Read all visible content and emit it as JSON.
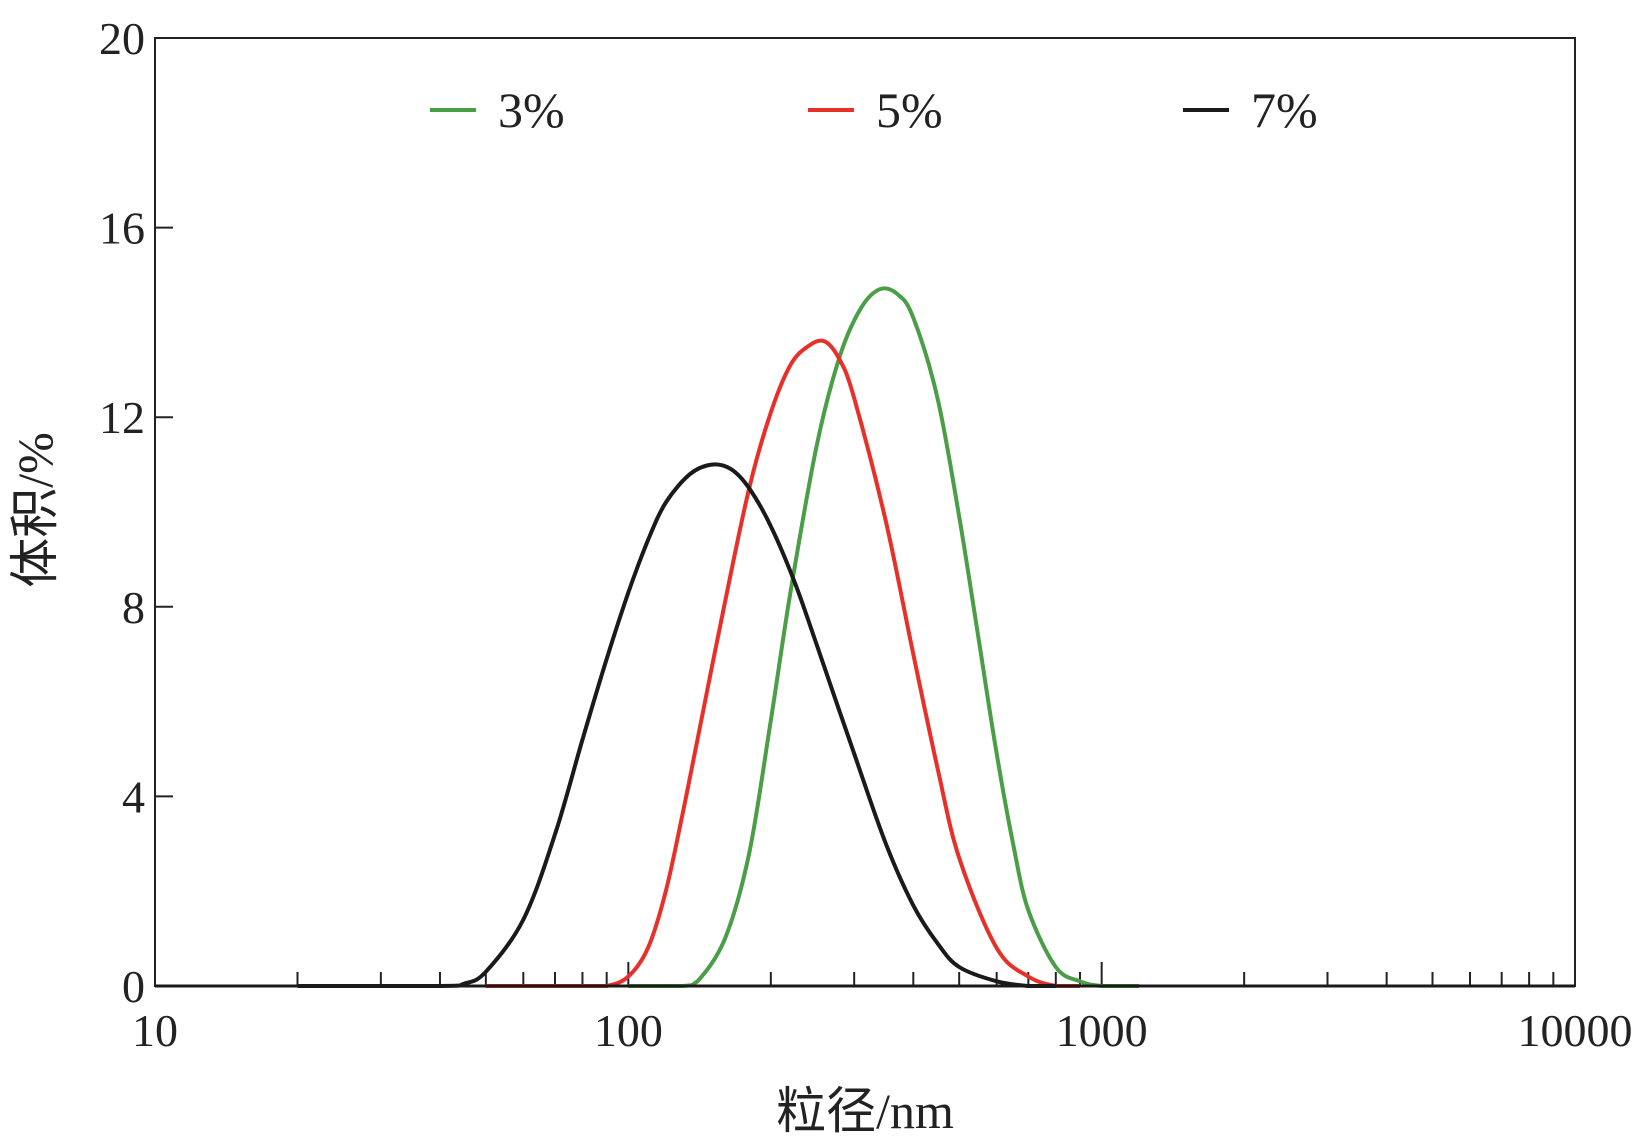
{
  "chart_data": {
    "type": "line",
    "xlabel": "粒径/nm",
    "ylabel": "体积/%",
    "x_scale": "log",
    "xlim": [
      10,
      10000
    ],
    "ylim": [
      0,
      20
    ],
    "x_ticks": [
      10,
      100,
      1000,
      10000
    ],
    "x_tick_labels": [
      "10",
      "100",
      "1000",
      "10000"
    ],
    "y_ticks": [
      0,
      4,
      8,
      12,
      16,
      20
    ],
    "y_tick_labels": [
      "0",
      "4",
      "8",
      "12",
      "16",
      "20"
    ],
    "grid": false,
    "legend_position": "top",
    "series": [
      {
        "name": "3%",
        "color": "#4a9e45",
        "points": [
          [
            100,
            0
          ],
          [
            130,
            0
          ],
          [
            140,
            0.1
          ],
          [
            160,
            1.0
          ],
          [
            180,
            2.8
          ],
          [
            200,
            5.6
          ],
          [
            220,
            8.3
          ],
          [
            250,
            11.4
          ],
          [
            280,
            13.3
          ],
          [
            310,
            14.3
          ],
          [
            340,
            14.7
          ],
          [
            370,
            14.6
          ],
          [
            400,
            14.1
          ],
          [
            450,
            12.4
          ],
          [
            500,
            9.9
          ],
          [
            550,
            7.3
          ],
          [
            600,
            4.9
          ],
          [
            650,
            3.0
          ],
          [
            700,
            1.6
          ],
          [
            800,
            0.4
          ],
          [
            900,
            0.1
          ],
          [
            1000,
            0
          ],
          [
            1200,
            0
          ]
        ]
      },
      {
        "name": "5%",
        "color": "#e8302a",
        "points": [
          [
            50,
            0
          ],
          [
            80,
            0
          ],
          [
            90,
            0
          ],
          [
            100,
            0.2
          ],
          [
            110,
            0.8
          ],
          [
            120,
            2.0
          ],
          [
            130,
            3.6
          ],
          [
            140,
            5.2
          ],
          [
            160,
            8.1
          ],
          [
            180,
            10.5
          ],
          [
            200,
            12.1
          ],
          [
            220,
            13.1
          ],
          [
            240,
            13.5
          ],
          [
            260,
            13.6
          ],
          [
            280,
            13.2
          ],
          [
            300,
            12.4
          ],
          [
            350,
            9.8
          ],
          [
            400,
            7.0
          ],
          [
            450,
            4.6
          ],
          [
            500,
            2.7
          ],
          [
            600,
            0.8
          ],
          [
            700,
            0.2
          ],
          [
            800,
            0
          ],
          [
            900,
            0
          ]
        ]
      },
      {
        "name": "7%",
        "color": "#1a1a1a",
        "points": [
          [
            20,
            0
          ],
          [
            40,
            0
          ],
          [
            45,
            0.05
          ],
          [
            50,
            0.3
          ],
          [
            60,
            1.4
          ],
          [
            70,
            3.2
          ],
          [
            80,
            5.2
          ],
          [
            90,
            6.9
          ],
          [
            100,
            8.3
          ],
          [
            110,
            9.4
          ],
          [
            120,
            10.2
          ],
          [
            135,
            10.8
          ],
          [
            150,
            11.0
          ],
          [
            165,
            10.9
          ],
          [
            180,
            10.5
          ],
          [
            200,
            9.7
          ],
          [
            225,
            8.5
          ],
          [
            250,
            7.2
          ],
          [
            300,
            4.9
          ],
          [
            350,
            3.0
          ],
          [
            400,
            1.7
          ],
          [
            450,
            0.9
          ],
          [
            500,
            0.4
          ],
          [
            600,
            0.1
          ],
          [
            700,
            0
          ],
          [
            800,
            0
          ]
        ]
      }
    ]
  }
}
